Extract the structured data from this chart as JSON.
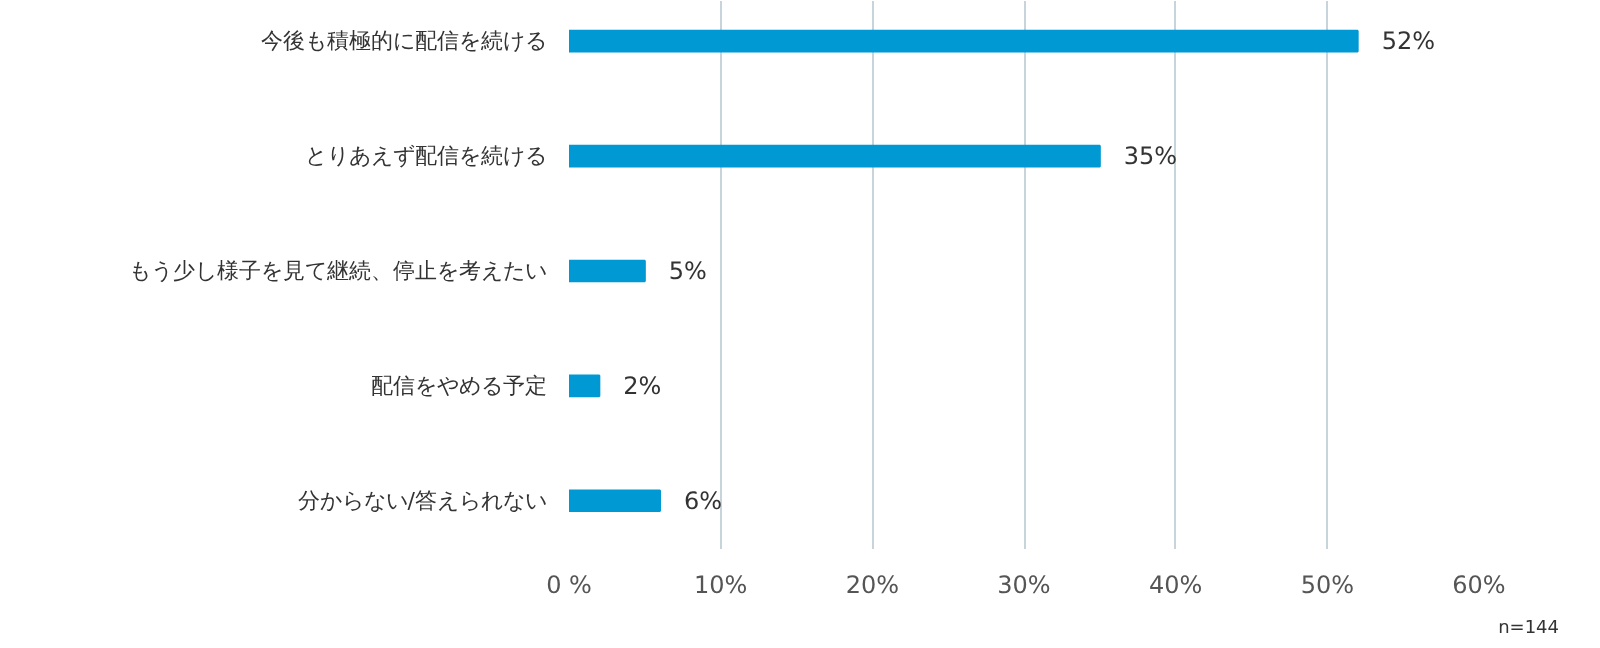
{
  "chart_data": {
    "type": "bar",
    "orientation": "horizontal",
    "categories": [
      "今後も積極的に配信を続ける",
      "とりあえず配信を続ける",
      "もう少し様子を見て継続、停止を考えたい",
      "配信をやめる予定",
      "分からない/答えられない"
    ],
    "values": [
      52,
      35,
      5,
      2,
      6
    ],
    "color": "#0099d4",
    "xlim": [
      0,
      60
    ],
    "xticks": [
      {
        "value": 0,
        "label": "0 %"
      },
      {
        "value": 10,
        "label": "10%"
      },
      {
        "value": 20,
        "label": "20%"
      },
      {
        "value": 30,
        "label": "30%"
      },
      {
        "value": 40,
        "label": "40%"
      },
      {
        "value": 50,
        "label": "50%"
      },
      {
        "value": 60,
        "label": "60%"
      }
    ],
    "value_labels": [
      "52%",
      "35%",
      "5%",
      "2%",
      "6%"
    ],
    "grid": "x",
    "annotations": [
      "n=144"
    ]
  }
}
